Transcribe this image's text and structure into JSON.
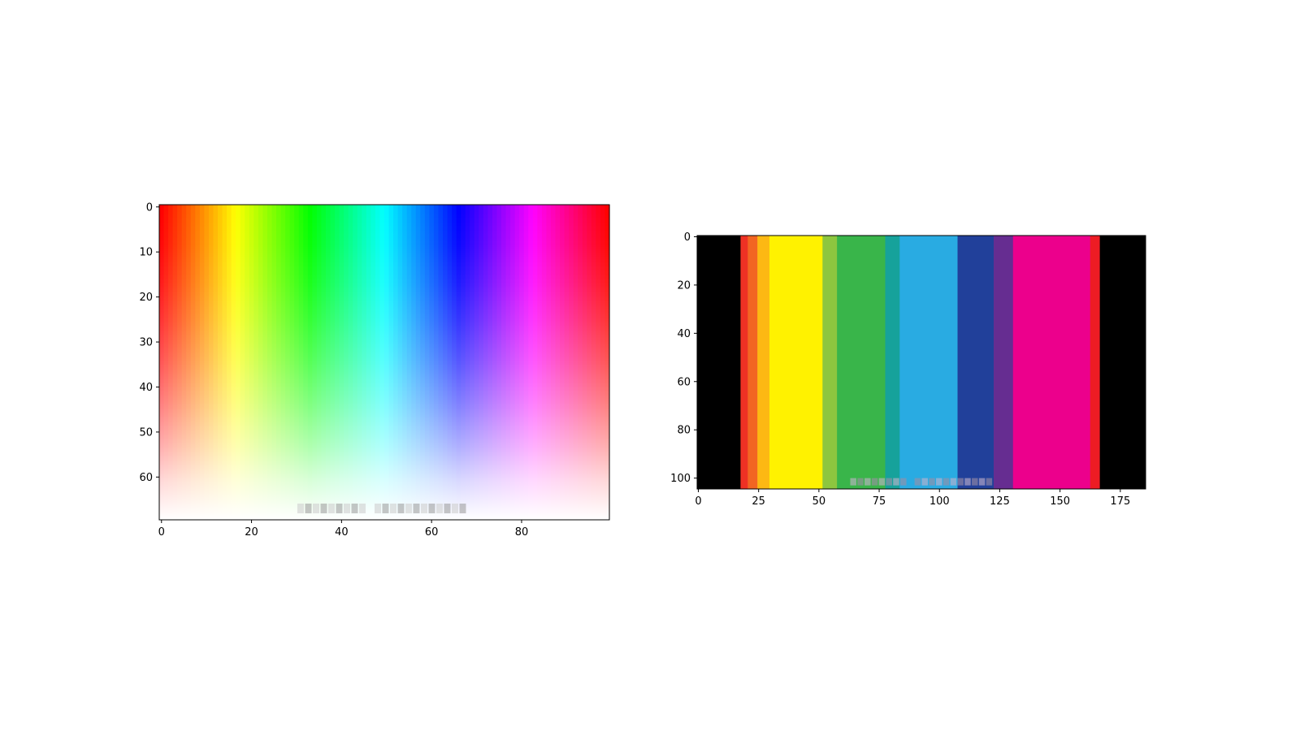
{
  "chart_data": [
    {
      "type": "heatmap",
      "title": "",
      "xlabel": "",
      "ylabel": "",
      "width_cells": 100,
      "height_cells": 70,
      "xlim": [
        -0.5,
        99.5
      ],
      "ylim": [
        69.5,
        -0.5
      ],
      "x_ticks": [
        0,
        20,
        40,
        60,
        80
      ],
      "y_ticks": [
        0,
        10,
        20,
        30,
        40,
        50,
        60
      ],
      "x_tick_labels": [
        "0",
        "20",
        "40",
        "60",
        "80"
      ],
      "y_tick_labels": [
        "0",
        "10",
        "20",
        "30",
        "40",
        "50",
        "60"
      ],
      "description_kind": "hue gradient left-to-right, fading to white toward bottom",
      "hue_stops": [
        "#ff0000",
        "#ffff00",
        "#00ff00",
        "#00ffff",
        "#0000ff",
        "#ff00ff",
        "#ff0000"
      ],
      "grid": false,
      "watermark_colors": [
        "#cccccc",
        "#999999"
      ]
    },
    {
      "type": "heatmap",
      "title": "",
      "xlabel": "",
      "ylabel": "",
      "width_cells": 186,
      "height_cells": 105,
      "xlim": [
        -0.5,
        185.5
      ],
      "ylim": [
        104.5,
        -0.5
      ],
      "x_ticks": [
        0,
        25,
        50,
        75,
        100,
        125,
        150,
        175
      ],
      "y_ticks": [
        0,
        20,
        40,
        60,
        80,
        100
      ],
      "x_tick_labels": [
        "0",
        "25",
        "50",
        "75",
        "100",
        "125",
        "150",
        "175"
      ],
      "y_tick_labels": [
        "0",
        "20",
        "40",
        "60",
        "80",
        "100"
      ],
      "grid": false,
      "black_border_columns": [
        [
          0,
          17
        ],
        [
          167,
          185
        ]
      ],
      "top_band": {
        "y_range": [
          0,
          28
        ],
        "segments": [
          {
            "x0": 17,
            "x1": 21,
            "color": "#ee3124"
          },
          {
            "x0": 21,
            "x1": 25,
            "color": "#f26522"
          },
          {
            "x0": 25,
            "x1": 30,
            "color": "#fdb813"
          },
          {
            "x0": 30,
            "x1": 52,
            "color": "#fff200"
          },
          {
            "x0": 52,
            "x1": 58,
            "color": "#8dc63f"
          },
          {
            "x0": 58,
            "x1": 78,
            "color": "#39b54a"
          },
          {
            "x0": 78,
            "x1": 84,
            "color": "#16a29b"
          },
          {
            "x0": 84,
            "x1": 108,
            "color": "#29abe2"
          },
          {
            "x0": 108,
            "x1": 123,
            "color": "#21409a"
          },
          {
            "x0": 123,
            "x1": 131,
            "color": "#662d91"
          },
          {
            "x0": 131,
            "x1": 163,
            "color": "#ec008c"
          },
          {
            "x0": 163,
            "x1": 167,
            "color": "#ed1c24"
          }
        ]
      },
      "middle_band": {
        "y_range": [
          28,
          72
        ],
        "segments": [
          {
            "x0": 17,
            "x1": 24,
            "color": "#f2a07c"
          },
          {
            "x0": 24,
            "x1": 53,
            "color": "#fee08b"
          },
          {
            "x0": 53,
            "x1": 60,
            "color": "#8dc63f"
          },
          {
            "x0": 60,
            "x1": 74,
            "color": "#a8c68f"
          },
          {
            "x0": 74,
            "x1": 83,
            "color": "#6cc5bb"
          },
          {
            "x0": 83,
            "x1": 110,
            "color": "#a8d4e6"
          },
          {
            "x0": 110,
            "x1": 120,
            "color": "#7383b6"
          },
          {
            "x0": 120,
            "x1": 132,
            "color": "#c2a5d6"
          },
          {
            "x0": 132,
            "x1": 160,
            "color": "#e9a3cb"
          },
          {
            "x0": 160,
            "x1": 167,
            "color": "#f0a496"
          }
        ]
      },
      "lower_band": {
        "y_range": [
          72,
          82
        ],
        "segments": [
          {
            "x0": 17,
            "x1": 30,
            "color": "#fbdcc7"
          },
          {
            "x0": 30,
            "x1": 62,
            "color": "#fff9a5"
          },
          {
            "x0": 62,
            "x1": 78,
            "color": "#d6ebd9"
          },
          {
            "x0": 78,
            "x1": 118,
            "color": "#a8d4e6"
          },
          {
            "x0": 118,
            "x1": 132,
            "color": "#e0d6ec"
          },
          {
            "x0": 132,
            "x1": 167,
            "color": "#fde6dd"
          }
        ]
      },
      "bottom_band": {
        "y_range": [
          82,
          105
        ],
        "segments": [
          {
            "x0": 17,
            "x1": 80,
            "color": "#feeadf"
          },
          {
            "x0": 80,
            "x1": 167,
            "color": "#ffffff"
          }
        ]
      },
      "watermark_colors": [
        "#c7b3cc",
        "#9f8fa6"
      ]
    }
  ]
}
